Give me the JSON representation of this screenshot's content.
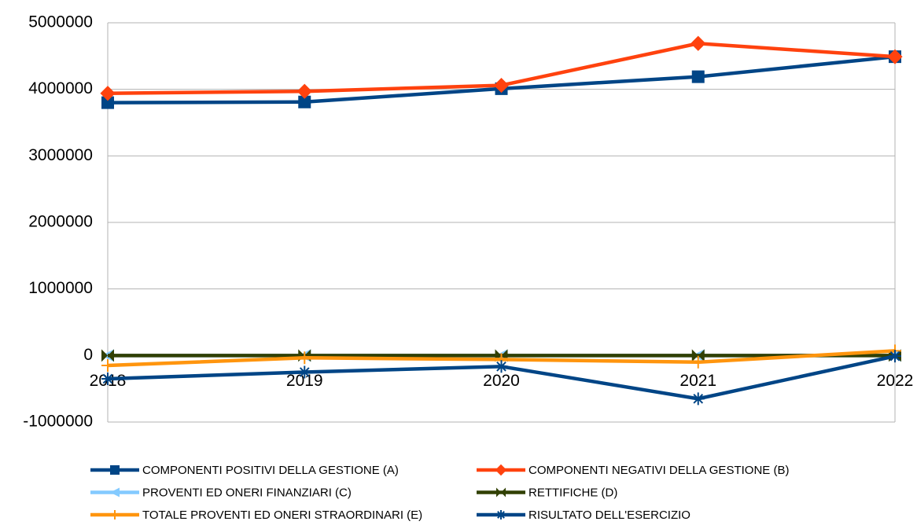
{
  "chart_data": {
    "type": "line",
    "categories": [
      "2018",
      "2019",
      "2020",
      "2021",
      "2022"
    ],
    "series": [
      {
        "name": "COMPONENTI POSITIVI DELLA GESTIONE (A)",
        "color": "#004586",
        "marker": "square",
        "values": [
          3800000,
          3810000,
          4010000,
          4190000,
          4490000
        ]
      },
      {
        "name": "COMPONENTI NEGATIVI DELLA GESTIONE (B)",
        "color": "#ff420e",
        "marker": "diamond",
        "values": [
          3940000,
          3970000,
          4060000,
          4690000,
          4490000
        ]
      },
      {
        "name": " PROVENTI ED ONERI FINANZIARI (C)",
        "color": "#83caff",
        "marker": "triangle",
        "values": [
          0,
          0,
          0,
          0,
          0
        ]
      },
      {
        "name": "RETTIFICHE (D)",
        "color": "#314004",
        "marker": "bowtie",
        "values": [
          0,
          0,
          0,
          0,
          0
        ]
      },
      {
        "name": "TOTALE PROVENTI ED ONERI STRAORDINARI (E)",
        "color": "#ff950e",
        "marker": "plus",
        "values": [
          -150000,
          -35000,
          -60000,
          -100000,
          70000
        ]
      },
      {
        "name": "RISULTATO DELL'ESERCIZIO",
        "color": "#004586",
        "marker": "asterisk",
        "values": [
          -350000,
          -250000,
          -165000,
          -650000,
          -10000
        ]
      }
    ],
    "ylim": [
      -1000000,
      5000000
    ],
    "yticks": [
      -1000000,
      0,
      1000000,
      2000000,
      3000000,
      4000000,
      5000000
    ],
    "grid": true,
    "legend": "bottom"
  }
}
